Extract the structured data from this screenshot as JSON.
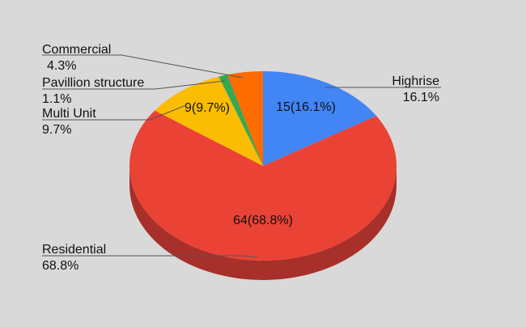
{
  "chart_data": {
    "type": "pie",
    "style": "3d",
    "title": "",
    "categories": [
      "Highrise",
      "Residential",
      "Multi Unit",
      "Pavillion structure",
      "Commercial"
    ],
    "values": [
      15,
      64,
      9,
      1,
      4
    ],
    "percent_labels": [
      "16.1%",
      "68.8%",
      "9.7%",
      "1.1%",
      "4.3%"
    ],
    "data_labels": [
      "15(16.1%)",
      "64(68.8%)",
      "9(9.7%)",
      "",
      ""
    ],
    "colors": [
      "#4285f4",
      "#ea4335",
      "#fbbc04",
      "#34a853",
      "#ff6d01"
    ],
    "side_colors": [
      "#2f63b8",
      "#a8302a",
      "#b58a05",
      "#237a3a",
      "#b84d02"
    ]
  }
}
